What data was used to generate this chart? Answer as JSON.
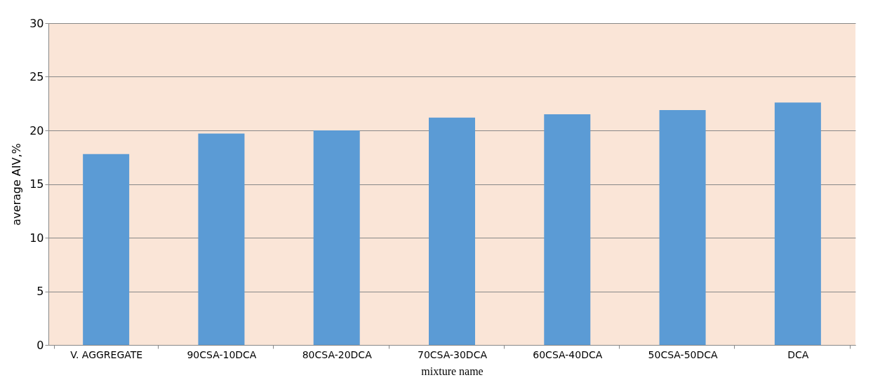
{
  "chart_data": {
    "type": "bar",
    "xlabel": "mixture name",
    "ylabel": "average AIV,%",
    "categories": [
      "V. AGGREGATE",
      "90CSA-10DCA",
      "80CSA-20DCA",
      "70CSA-30DCA",
      "60CSA-40DCA",
      "50CSA-50DCA",
      "DCA"
    ],
    "values": [
      17.8,
      19.7,
      20.0,
      21.2,
      21.5,
      21.9,
      22.6
    ],
    "color": "#5b9bd5",
    "ylim": [
      0,
      30
    ],
    "yticks": [
      0,
      5,
      10,
      15,
      20,
      25,
      30
    ],
    "grid": "y"
  }
}
